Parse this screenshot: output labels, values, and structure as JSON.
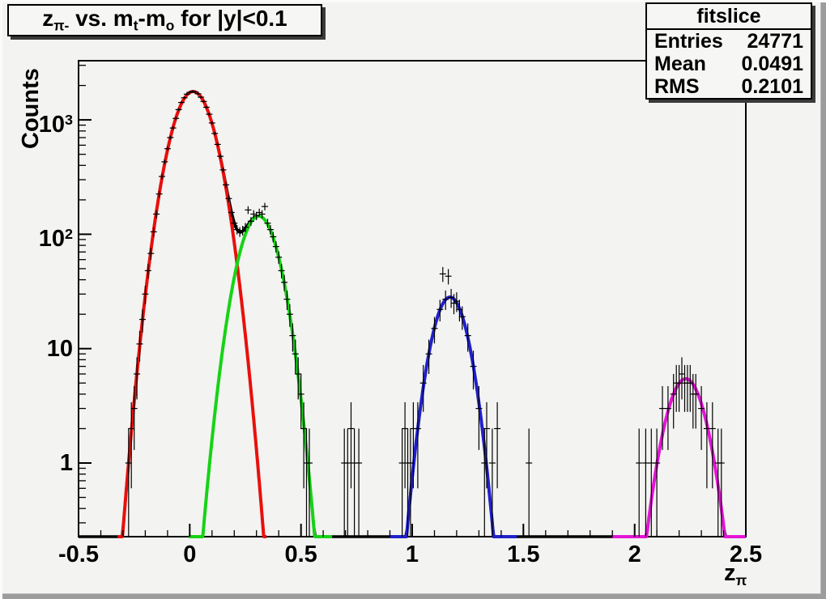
{
  "canvas": {
    "bg": "#f3f3f1",
    "bevel_light": "#fbfbfa",
    "bevel_dark": "#9c9c9c"
  },
  "chart_data": {
    "type": "line",
    "title": "z_{pi-} vs. m_{t}-m_{o} for |y|<0.1",
    "title_segments": [
      {
        "t": "z"
      },
      {
        "t": "π-",
        "sub": true
      },
      {
        "t": " vs. m"
      },
      {
        "t": "t",
        "sub": true
      },
      {
        "t": "-m"
      },
      {
        "t": "o",
        "sub": true
      },
      {
        "t": " for |y|<0.1"
      }
    ],
    "ylabel": "Counts",
    "xlabel": "z_{pi}",
    "xlabel_segments": [
      {
        "t": "z"
      },
      {
        "t": "π",
        "sub": true
      }
    ],
    "x_axis": {
      "min": -0.5,
      "max": 2.5,
      "major_step": 0.5,
      "minor_step": 0.1,
      "tick_labels": [
        "-0.5",
        "0",
        "0.5",
        "1",
        "1.5",
        "2",
        "2.5"
      ]
    },
    "y_axis": {
      "scale": "log",
      "min": 0.227,
      "max": 3290,
      "ticks": [
        {
          "v": 1000,
          "label": "10",
          "exp": "3"
        },
        {
          "v": 100,
          "label": "10",
          "exp": "2"
        },
        {
          "v": 10,
          "label": "10"
        },
        {
          "v": 1,
          "label": "1"
        }
      ]
    },
    "stats": {
      "title": "fitslice",
      "rows": [
        {
          "label": "Entries",
          "value": "24771"
        },
        {
          "label": "Mean",
          "value": "0.0491"
        },
        {
          "label": "RMS",
          "value": "0.2101"
        }
      ]
    },
    "sum_color": "#000000",
    "fits": [
      {
        "name": "red-fit",
        "color": "#e8100c",
        "amp": 1770,
        "mean": 0.015,
        "sigma": 0.075,
        "range": [
          -0.325,
          0.345
        ]
      },
      {
        "name": "green-fit",
        "color": "#16d316",
        "amp": 144,
        "mean": 0.31,
        "sigma": 0.07,
        "range": [
          -0.005,
          0.64
        ]
      },
      {
        "name": "blue-fit",
        "color": "#2020cc",
        "amp": 28.2,
        "mean": 1.17,
        "sigma": 0.063,
        "range": [
          0.9,
          1.47
        ]
      },
      {
        "name": "magenta-fit",
        "color": "#e414d6",
        "amp": 5.45,
        "mean": 2.23,
        "sigma": 0.07,
        "range": [
          1.9,
          2.5
        ]
      }
    ],
    "points": [
      [
        -0.275,
        1,
        1
      ],
      [
        -0.2625,
        2,
        1.4
      ],
      [
        -0.25,
        3,
        1.7
      ],
      [
        -0.2375,
        6,
        2.4
      ],
      [
        -0.225,
        11,
        3.3
      ],
      [
        -0.2125,
        18,
        4.2
      ],
      [
        -0.2,
        30,
        5.5
      ],
      [
        -0.1875,
        48,
        6.9
      ],
      [
        -0.175,
        68,
        8.2
      ],
      [
        -0.1625,
        105,
        10.2
      ],
      [
        -0.15,
        150,
        12.2
      ],
      [
        -0.1375,
        225,
        15
      ],
      [
        -0.125,
        320,
        17.9
      ],
      [
        -0.1125,
        430,
        20.7
      ],
      [
        -0.1,
        560,
        23.7
      ],
      [
        -0.0875,
        700,
        26.5
      ],
      [
        -0.075,
        850,
        29.2
      ],
      [
        -0.0625,
        1030,
        32.1
      ],
      [
        -0.05,
        1230,
        35.1
      ],
      [
        -0.0375,
        1420,
        37.7
      ],
      [
        -0.025,
        1560,
        39.5
      ],
      [
        -0.0125,
        1680,
        41
      ],
      [
        0,
        1740,
        41.7
      ],
      [
        0.0125,
        1775,
        42.1
      ],
      [
        0.025,
        1750,
        41.8
      ],
      [
        0.0375,
        1690,
        41.1
      ],
      [
        0.05,
        1580,
        39.7
      ],
      [
        0.0625,
        1450,
        38.1
      ],
      [
        0.075,
        1290,
        35.9
      ],
      [
        0.0875,
        1120,
        33.5
      ],
      [
        0.1,
        940,
        30.7
      ],
      [
        0.1125,
        760,
        27.6
      ],
      [
        0.125,
        610,
        24.7
      ],
      [
        0.1375,
        480,
        21.9
      ],
      [
        0.15,
        365,
        19.1
      ],
      [
        0.1625,
        270,
        16.4
      ],
      [
        0.175,
        205,
        14.3
      ],
      [
        0.1875,
        155,
        12.4
      ],
      [
        0.2,
        125,
        11.2
      ],
      [
        0.2125,
        110,
        10.5
      ],
      [
        0.225,
        105,
        10.2
      ],
      [
        0.2375,
        108,
        10.4
      ],
      [
        0.25,
        115,
        10.7
      ],
      [
        0.2625,
        163,
        12.8
      ],
      [
        0.275,
        130,
        11.4
      ],
      [
        0.2875,
        150,
        12.2
      ],
      [
        0.3,
        145,
        12
      ],
      [
        0.3125,
        155,
        12.4
      ],
      [
        0.325,
        150,
        12.2
      ],
      [
        0.3375,
        175,
        13.2
      ],
      [
        0.35,
        125,
        11.2
      ],
      [
        0.3625,
        110,
        10.5
      ],
      [
        0.375,
        95,
        9.7
      ],
      [
        0.3875,
        78,
        8.8
      ],
      [
        0.4,
        63,
        7.9
      ],
      [
        0.4125,
        48,
        6.9
      ],
      [
        0.425,
        38,
        6.2
      ],
      [
        0.4375,
        27,
        5.2
      ],
      [
        0.45,
        20,
        4.5
      ],
      [
        0.4625,
        13,
        3.6
      ],
      [
        0.475,
        9,
        3
      ],
      [
        0.4875,
        6,
        2.4
      ],
      [
        0.5,
        4,
        2
      ],
      [
        0.5125,
        2,
        1.4
      ],
      [
        0.525,
        1,
        1
      ],
      [
        0.5375,
        1,
        1
      ],
      [
        0.695,
        1,
        1
      ],
      [
        0.71,
        1,
        1
      ],
      [
        0.725,
        2,
        1.4
      ],
      [
        0.74,
        1,
        1
      ],
      [
        0.76,
        1,
        1
      ],
      [
        0.955,
        1,
        1
      ],
      [
        0.9675,
        2,
        1.4
      ],
      [
        0.98,
        1,
        1
      ],
      [
        0.9925,
        1,
        1
      ],
      [
        1.005,
        2,
        1.4
      ],
      [
        1.025,
        2,
        1.4
      ],
      [
        1.05,
        5,
        2.2
      ],
      [
        1.075,
        9,
        3
      ],
      [
        1.1,
        15,
        3.9
      ],
      [
        1.125,
        22,
        4.7
      ],
      [
        1.1375,
        45,
        6.7
      ],
      [
        1.15,
        27,
        5.2
      ],
      [
        1.1625,
        43,
        6.6
      ],
      [
        1.175,
        28,
        5.3
      ],
      [
        1.1875,
        25,
        5
      ],
      [
        1.2,
        26,
        5.1
      ],
      [
        1.2125,
        22,
        4.7
      ],
      [
        1.225,
        19,
        4.4
      ],
      [
        1.25,
        13,
        3.6
      ],
      [
        1.275,
        7,
        2.6
      ],
      [
        1.3,
        3,
        1.7
      ],
      [
        1.325,
        1,
        1
      ],
      [
        1.335,
        2,
        1.4
      ],
      [
        1.36,
        1,
        1
      ],
      [
        1.3825,
        2,
        1.4
      ],
      [
        1.525,
        1,
        1
      ],
      [
        2.02,
        1,
        1
      ],
      [
        2.05,
        1,
        1
      ],
      [
        2.075,
        1,
        1
      ],
      [
        2.1,
        1,
        1
      ],
      [
        2.125,
        3,
        1.7
      ],
      [
        2.15,
        3,
        1.7
      ],
      [
        2.175,
        4,
        2
      ],
      [
        2.1875,
        5,
        2.2
      ],
      [
        2.2,
        5,
        2.2
      ],
      [
        2.2125,
        6,
        2.4
      ],
      [
        2.225,
        5,
        2.2
      ],
      [
        2.2375,
        5,
        2.2
      ],
      [
        2.25,
        5,
        2.2
      ],
      [
        2.2625,
        4,
        2
      ],
      [
        2.275,
        4,
        2
      ],
      [
        2.3,
        3,
        1.7
      ],
      [
        2.325,
        2,
        1.4
      ],
      [
        2.35,
        2,
        1.4
      ],
      [
        2.375,
        1,
        1
      ],
      [
        2.39,
        1,
        1
      ]
    ]
  }
}
